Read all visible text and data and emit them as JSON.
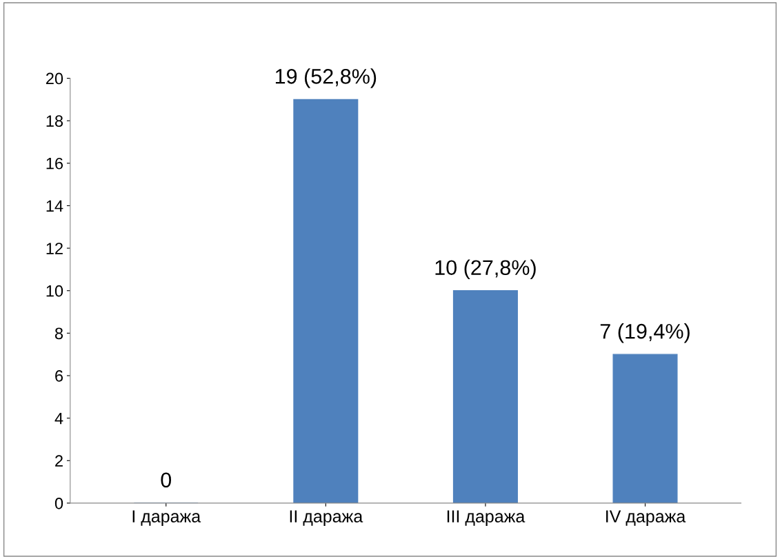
{
  "chart_data": {
    "type": "bar",
    "categories": [
      "I даража",
      "II даража",
      "III даража",
      "IV даража"
    ],
    "values": [
      0,
      19,
      10,
      7
    ],
    "value_labels": [
      "0",
      "19 (52,8%)",
      "10 (27,8%)",
      "7 (19,4%)"
    ],
    "color": "#4f81bd",
    "ylim": [
      0,
      20
    ],
    "yticks": [
      0,
      2,
      4,
      6,
      8,
      10,
      12,
      14,
      16,
      18,
      20
    ],
    "grid": false,
    "legend": false
  }
}
